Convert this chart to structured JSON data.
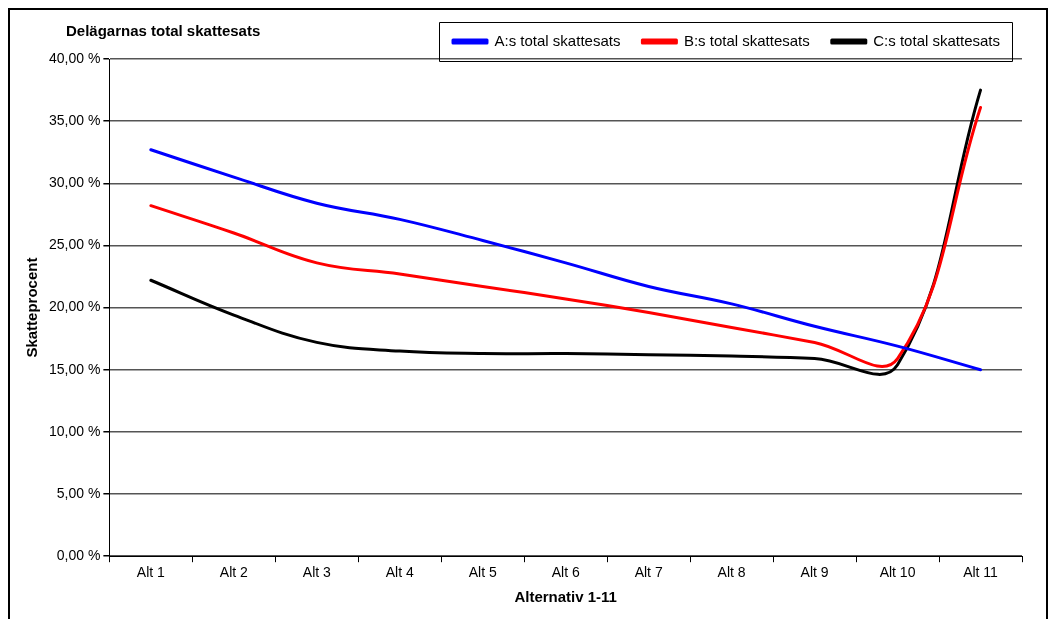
{
  "chart_data": {
    "type": "line",
    "title": "Delägarnas total skattesats",
    "xlabel": "Alternativ 1-11",
    "ylabel": "Skatteprocent",
    "categories": [
      "Alt 1",
      "Alt 2",
      "Alt 3",
      "Alt 4",
      "Alt 5",
      "Alt 6",
      "Alt 7",
      "Alt 8",
      "Alt 9",
      "Alt 10",
      "Alt 11"
    ],
    "series": [
      {
        "name": "A:s total skattesats",
        "color": "#0000ff",
        "values": [
          32.7,
          30.5,
          28.4,
          27.1,
          25.4,
          23.6,
          21.7,
          20.3,
          18.5,
          16.9,
          15.0
        ]
      },
      {
        "name": "B:s total skattesats",
        "color": "#ff0000",
        "values": [
          28.2,
          26.0,
          23.6,
          22.7,
          21.7,
          20.7,
          19.6,
          18.4,
          17.2,
          15.9,
          36.1
        ]
      },
      {
        "name": "C:s total skattesats",
        "color": "#000000",
        "values": [
          22.2,
          19.4,
          17.2,
          16.5,
          16.3,
          16.3,
          16.2,
          16.1,
          15.9,
          15.4,
          37.5
        ]
      }
    ],
    "ylim": [
      0,
      40
    ],
    "yticks": [
      {
        "value": 0,
        "label": "0,00 %"
      },
      {
        "value": 5,
        "label": "5,00 %"
      },
      {
        "value": 10,
        "label": "10,00 %"
      },
      {
        "value": 15,
        "label": "15,00 %"
      },
      {
        "value": 20,
        "label": "20,00 %"
      },
      {
        "value": 25,
        "label": "25,00 %"
      },
      {
        "value": 30,
        "label": "30,00 %"
      },
      {
        "value": 35,
        "label": "35,00 %"
      },
      {
        "value": 40,
        "label": "40,00 %"
      }
    ],
    "grid": "y",
    "legend": "top right",
    "marker": "none",
    "line_style": "solid"
  }
}
